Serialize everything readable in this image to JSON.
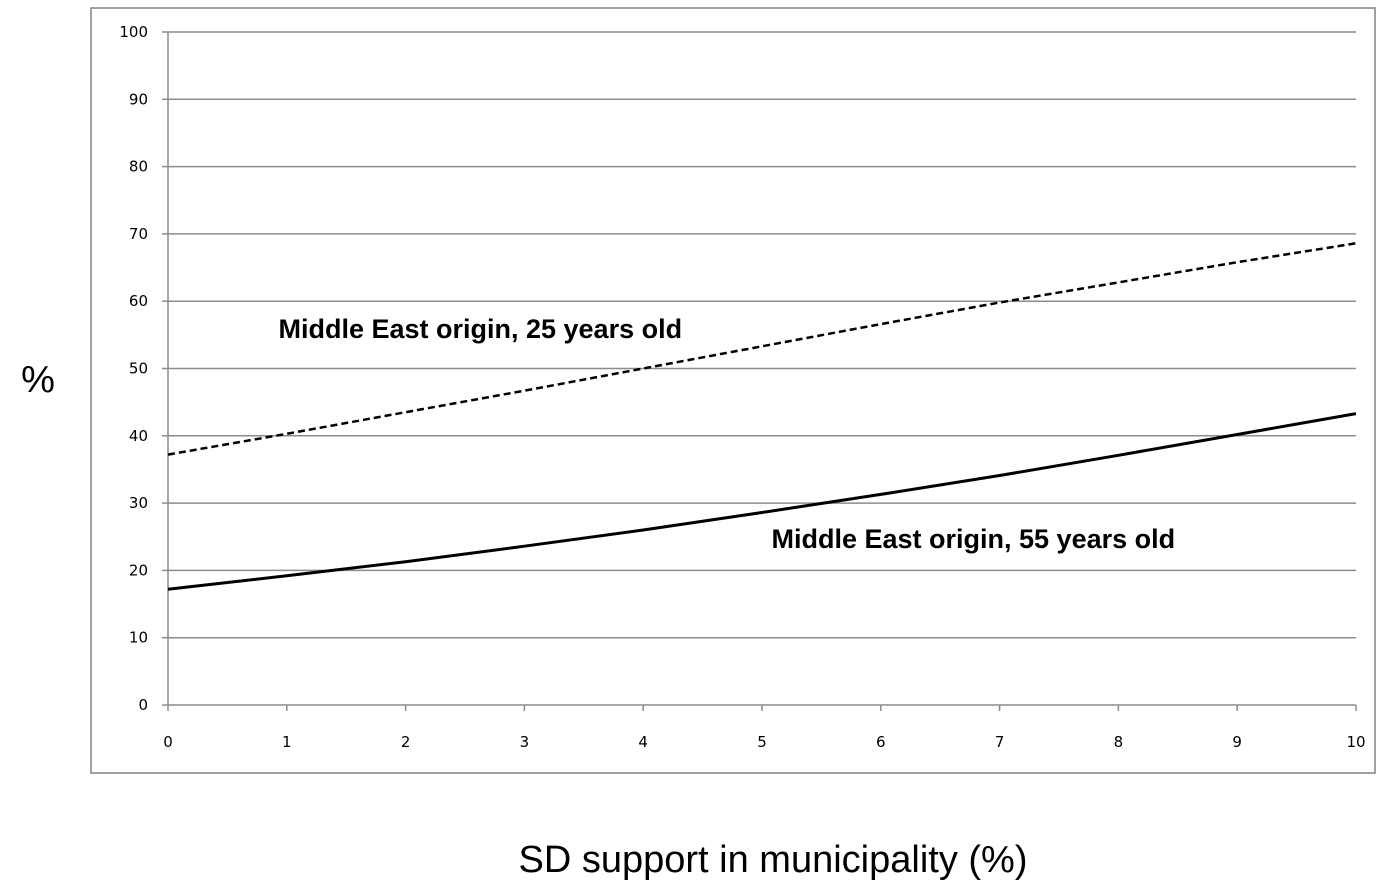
{
  "chart_data": {
    "type": "line",
    "xlabel": "SD support in municipality (%)",
    "ylabel": "%",
    "xlim": [
      0,
      10
    ],
    "ylim": [
      0,
      100
    ],
    "x_ticks": [
      "0",
      "1",
      "2",
      "3",
      "4",
      "5",
      "6",
      "7",
      "8",
      "9",
      "10"
    ],
    "y_ticks": [
      "0",
      "10",
      "20",
      "30",
      "40",
      "50",
      "60",
      "70",
      "80",
      "90",
      "100"
    ],
    "grid": "horizontal",
    "legend": "inline labels",
    "series": [
      {
        "name": "Middle East origin, 25 years old",
        "style": "dashed",
        "color": "#000000",
        "x": [
          0,
          1,
          2,
          3,
          4,
          5,
          6,
          7,
          8,
          9,
          10
        ],
        "y": [
          37.2,
          40.3,
          43.5,
          46.7,
          50.0,
          53.3,
          56.6,
          59.8,
          62.8,
          65.8,
          68.6
        ]
      },
      {
        "name": "Middle East origin, 55 years old",
        "style": "solid",
        "color": "#000000",
        "x": [
          0,
          1,
          2,
          3,
          4,
          5,
          6,
          7,
          8,
          9,
          10
        ],
        "y": [
          17.2,
          19.2,
          21.3,
          23.6,
          26.0,
          28.6,
          31.3,
          34.1,
          37.1,
          40.2,
          43.3
        ]
      }
    ]
  }
}
